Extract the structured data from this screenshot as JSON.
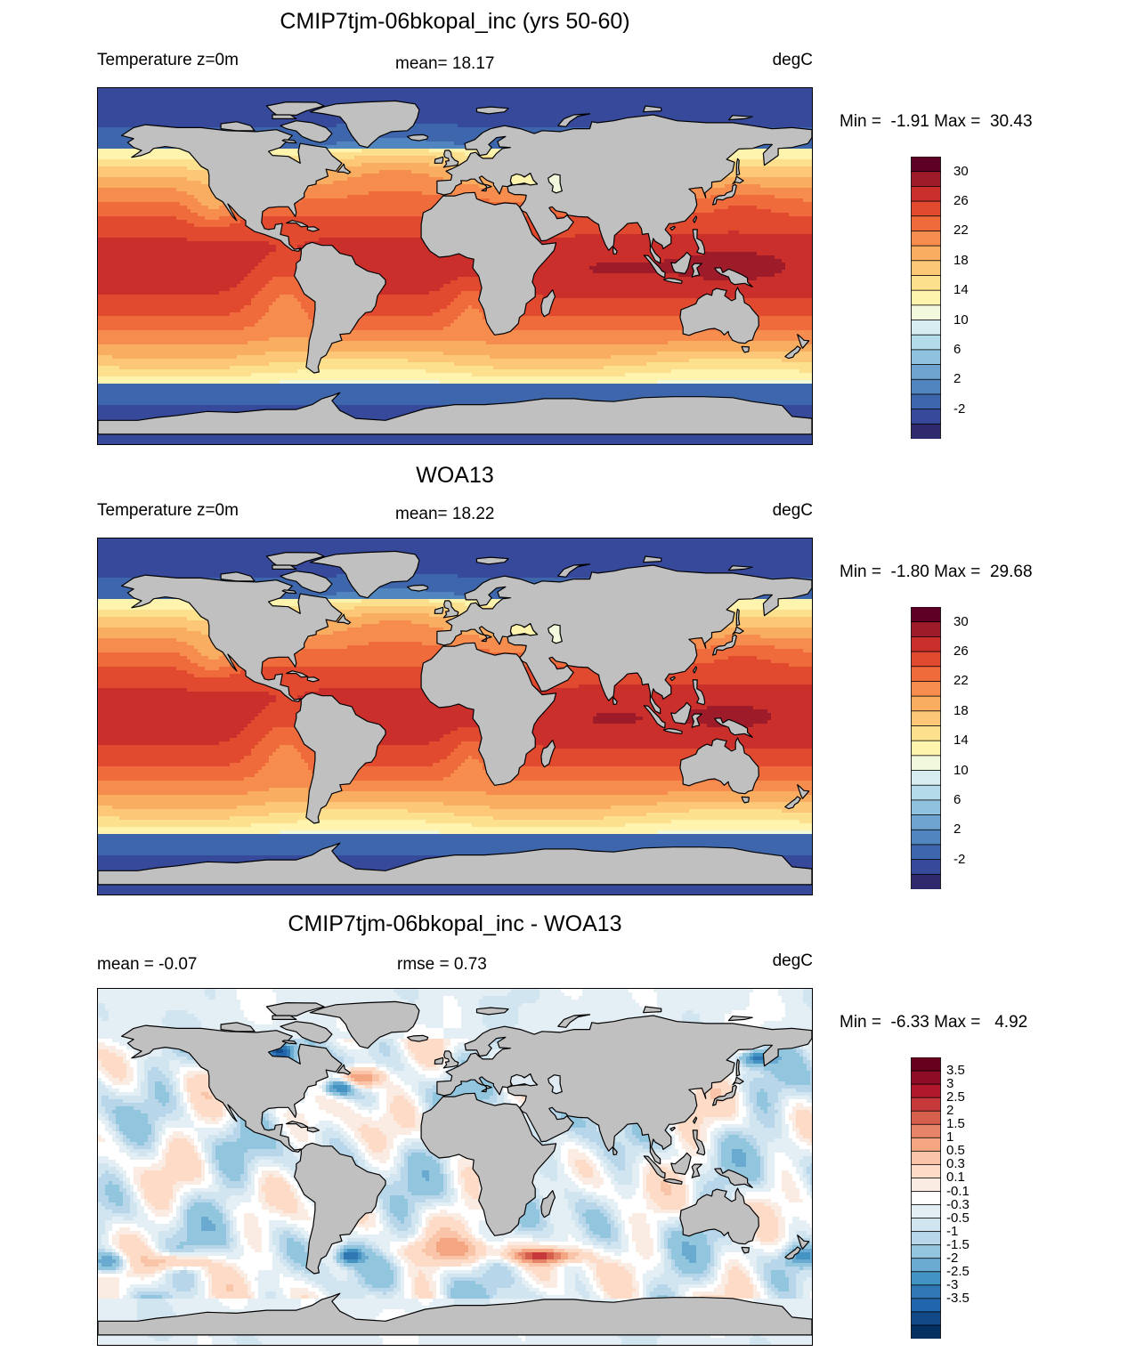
{
  "panels": [
    {
      "title": "CMIP7tjm-06bkopal_inc (yrs 50-60)",
      "left_label": "Temperature z=0m",
      "mid_label": "mean=  18.17",
      "units": "degC",
      "minmax": "Min =  -1.91 Max =  30.43",
      "mean_value": 18.17,
      "min_value": -1.91,
      "max_value": 30.43,
      "field": "sst",
      "colorbar": {
        "colors": [
          "#5e0025",
          "#9e1b2a",
          "#cb2f2b",
          "#e24a2f",
          "#f06b3b",
          "#f68c4d",
          "#f9ad60",
          "#fcc877",
          "#fde08e",
          "#fef4ad",
          "#f1f8dc",
          "#d6ecf0",
          "#b3dbe9",
          "#8fc2de",
          "#6ea4cf",
          "#5185bf",
          "#3d66ac",
          "#36499b",
          "#2f2a6e"
        ],
        "labels": [
          "30",
          "26",
          "22",
          "18",
          "14",
          "10",
          "6",
          "2",
          "-2"
        ]
      }
    },
    {
      "title": "WOA13",
      "left_label": "Temperature z=0m",
      "mid_label": "mean=  18.22",
      "units": "degC",
      "minmax": "Min =  -1.80 Max =  29.68",
      "mean_value": 18.22,
      "min_value": -1.8,
      "max_value": 29.68,
      "field": "sst",
      "colorbar": {
        "colors": [
          "#5e0025",
          "#9e1b2a",
          "#cb2f2b",
          "#e24a2f",
          "#f06b3b",
          "#f68c4d",
          "#f9ad60",
          "#fcc877",
          "#fde08e",
          "#fef4ad",
          "#f1f8dc",
          "#d6ecf0",
          "#b3dbe9",
          "#8fc2de",
          "#6ea4cf",
          "#5185bf",
          "#3d66ac",
          "#36499b",
          "#2f2a6e"
        ],
        "labels": [
          "30",
          "26",
          "22",
          "18",
          "14",
          "10",
          "6",
          "2",
          "-2"
        ]
      }
    },
    {
      "title": "CMIP7tjm-06bkopal_inc - WOA13",
      "left_label": "mean =  -0.07",
      "mid_label": "rmse =   0.73",
      "units": "degC",
      "minmax": "Min =  -6.33 Max =   4.92",
      "mean_value": -0.07,
      "rmse_value": 0.73,
      "min_value": -6.33,
      "max_value": 4.92,
      "field": "diff",
      "colorbar": {
        "colors": [
          "#67001f",
          "#8c0d25",
          "#b2182b",
          "#c7383b",
          "#d6604d",
          "#e58468",
          "#f4a582",
          "#f9c4a8",
          "#fddbc7",
          "#fbece3",
          "#ffffff",
          "#e4eef5",
          "#d1e5f0",
          "#b7d6e9",
          "#92c5de",
          "#6aa9d0",
          "#4393c3",
          "#2f78b4",
          "#2166ac",
          "#124a87",
          "#053061"
        ],
        "labels": [
          "3.5",
          "3",
          "2.5",
          "2",
          "1.5",
          "1",
          "0.5",
          "0.3",
          "0.1",
          "-0.1",
          "-0.3",
          "-0.5",
          "-1",
          "-1.5",
          "-2",
          "-2.5",
          "-3",
          "-3.5"
        ]
      }
    }
  ],
  "colors": {
    "land": "#c0c0c0",
    "coastline": "#000000"
  }
}
